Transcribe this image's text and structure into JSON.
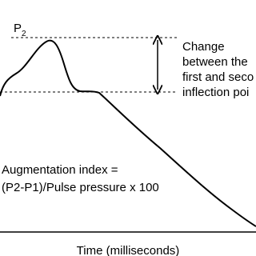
{
  "peak_label": {
    "main": "P",
    "subscript": "2"
  },
  "change_note": [
    "Change",
    "between the",
    "first and seco",
    "inflection poi"
  ],
  "formula": [
    "Augmentation index =",
    "(P2-P1)/Pulse pressure x 100"
  ],
  "x_axis_label": "Time (milliseconds)"
}
